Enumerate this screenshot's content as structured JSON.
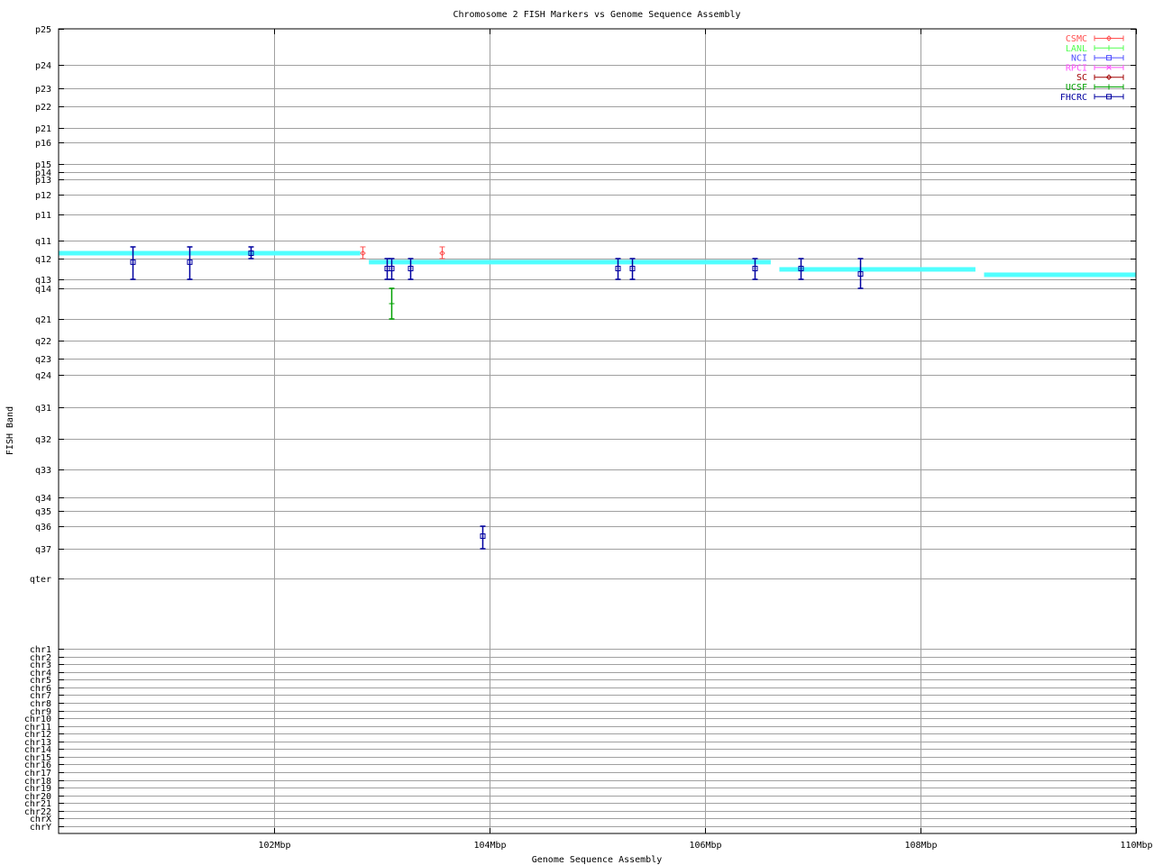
{
  "chart_data": {
    "type": "scatter",
    "title": "Chromosome 2 FISH Markers vs Genome Sequence Assembly",
    "xlabel": "Genome Sequence Assembly",
    "ylabel": "FISH Band",
    "xlim": [
      100,
      110
    ],
    "x_unit": "Mbp",
    "x_ticks": [
      "102Mbp",
      "104Mbp",
      "106Mbp",
      "108Mbp",
      "110Mbp"
    ],
    "x_tick_values": [
      102,
      104,
      106,
      108,
      110
    ],
    "y_axis": "categorical bands, top to bottom",
    "y_ticks": [
      "p25",
      "p24",
      "p23",
      "p22",
      "p21",
      "p16",
      "p15",
      "p14",
      "p13",
      "p12",
      "p11",
      "q11",
      "q12",
      "q13",
      "q14",
      "q21",
      "q22",
      "q23",
      "q24",
      "q31",
      "q32",
      "q33",
      "q34",
      "q35",
      "q36",
      "q37",
      "qter",
      "chr1",
      "chr2",
      "chr3",
      "chr4",
      "chr5",
      "chr6",
      "chr7",
      "chr8",
      "chr9",
      "chr10",
      "chr11",
      "chr12",
      "chr13",
      "chr14",
      "chr15",
      "chr16",
      "chr17",
      "chr18",
      "chr19",
      "chr20",
      "chr21",
      "chr22",
      "chrX",
      "chrY"
    ],
    "grid": true,
    "legend_placement": "top-right",
    "legend": [
      {
        "name": "CSMC",
        "color": "#ff5050",
        "marker": "diamond"
      },
      {
        "name": "LANL",
        "color": "#50ff50",
        "marker": "plus"
      },
      {
        "name": "NCI",
        "color": "#5050ff",
        "marker": "square"
      },
      {
        "name": "RPCI",
        "color": "#ff50ff",
        "marker": "cross"
      },
      {
        "name": "SC",
        "color": "#a00000",
        "marker": "diamond"
      },
      {
        "name": "UCSF",
        "color": "#00a000",
        "marker": "plus"
      },
      {
        "name": "FHCRC",
        "color": "#0000a0",
        "marker": "square"
      }
    ],
    "assembly_color": "#50ffff",
    "assembly_segments": [
      {
        "x_start": 100.0,
        "x_end": 102.8,
        "y": {
          "band": "q11",
          "frac": 0.7
        }
      },
      {
        "x_start": 102.88,
        "x_end": 106.61,
        "y": {
          "band": "q12",
          "frac": 0.17
        }
      },
      {
        "x_start": 106.69,
        "x_end": 108.51,
        "y": {
          "band": "q12",
          "frac": 0.52
        }
      },
      {
        "x_start": 108.59,
        "x_end": 110.0,
        "y": {
          "band": "q12",
          "frac": 0.78
        }
      }
    ],
    "points": [
      {
        "source": "FHCRC",
        "x": 100.69,
        "y": {
          "band": "q12",
          "frac": 0.17
        },
        "y_low": {
          "band": "q11",
          "frac": 0.35
        },
        "y_high": {
          "band": "q13",
          "frac": 0
        }
      },
      {
        "source": "FHCRC",
        "x": 101.21,
        "y": {
          "band": "q12",
          "frac": 0.17
        },
        "y_low": {
          "band": "q11",
          "frac": 0.35
        },
        "y_high": {
          "band": "q13",
          "frac": 0
        }
      },
      {
        "source": "FHCRC",
        "x": 101.78,
        "y": {
          "band": "q11",
          "frac": 0.7
        },
        "y_low": {
          "band": "q11",
          "frac": 0.35
        },
        "y_high": {
          "band": "q12",
          "frac": 0
        }
      },
      {
        "source": "CSMC",
        "x": 102.82,
        "y": {
          "band": "q11",
          "frac": 0.7
        },
        "y_low": {
          "band": "q11",
          "frac": 0.35
        },
        "y_high": {
          "band": "q12",
          "frac": 0
        }
      },
      {
        "source": "FHCRC",
        "x": 103.05,
        "y": {
          "band": "q12",
          "frac": 0.48
        },
        "y_low": {
          "band": "q12",
          "frac": 0
        },
        "y_high": {
          "band": "q13",
          "frac": 0
        }
      },
      {
        "source": "FHCRC",
        "x": 103.09,
        "y": {
          "band": "q12",
          "frac": 0.48
        },
        "y_low": {
          "band": "q12",
          "frac": 0
        },
        "y_high": {
          "band": "q13",
          "frac": 0
        }
      },
      {
        "source": "UCSF",
        "x": 103.09,
        "y": {
          "band": "q14",
          "frac": 0.5
        },
        "y_low": {
          "band": "q14",
          "frac": 0
        },
        "y_high": {
          "band": "q21",
          "frac": 0
        }
      },
      {
        "source": "FHCRC",
        "x": 103.26,
        "y": {
          "band": "q12",
          "frac": 0.48
        },
        "y_low": {
          "band": "q12",
          "frac": 0
        },
        "y_high": {
          "band": "q13",
          "frac": 0
        }
      },
      {
        "source": "CSMC",
        "x": 103.56,
        "y": {
          "band": "q11",
          "frac": 0.7
        },
        "y_low": {
          "band": "q11",
          "frac": 0.35
        },
        "y_high": {
          "band": "q12",
          "frac": 0
        }
      },
      {
        "source": "FHCRC",
        "x": 103.93,
        "y": {
          "band": "q36",
          "frac": 0.44
        },
        "y_low": {
          "band": "q36",
          "frac": 0
        },
        "y_high": {
          "band": "q37",
          "frac": 0
        }
      },
      {
        "source": "FHCRC",
        "x": 105.19,
        "y": {
          "band": "q12",
          "frac": 0.48
        },
        "y_low": {
          "band": "q12",
          "frac": 0
        },
        "y_high": {
          "band": "q13",
          "frac": 0
        }
      },
      {
        "source": "FHCRC",
        "x": 105.32,
        "y": {
          "band": "q12",
          "frac": 0.48
        },
        "y_low": {
          "band": "q12",
          "frac": 0
        },
        "y_high": {
          "band": "q13",
          "frac": 0
        }
      },
      {
        "source": "FHCRC",
        "x": 106.46,
        "y": {
          "band": "q12",
          "frac": 0.48
        },
        "y_low": {
          "band": "q12",
          "frac": 0
        },
        "y_high": {
          "band": "q13",
          "frac": 0
        }
      },
      {
        "source": "FHCRC",
        "x": 106.89,
        "y": {
          "band": "q12",
          "frac": 0.48
        },
        "y_low": {
          "band": "q12",
          "frac": 0
        },
        "y_high": {
          "band": "q13",
          "frac": 0
        }
      },
      {
        "source": "FHCRC",
        "x": 107.44,
        "y": {
          "band": "q12",
          "frac": 0.74
        },
        "y_low": {
          "band": "q12",
          "frac": 0
        },
        "y_high": {
          "band": "q14",
          "frac": 0
        }
      }
    ]
  }
}
